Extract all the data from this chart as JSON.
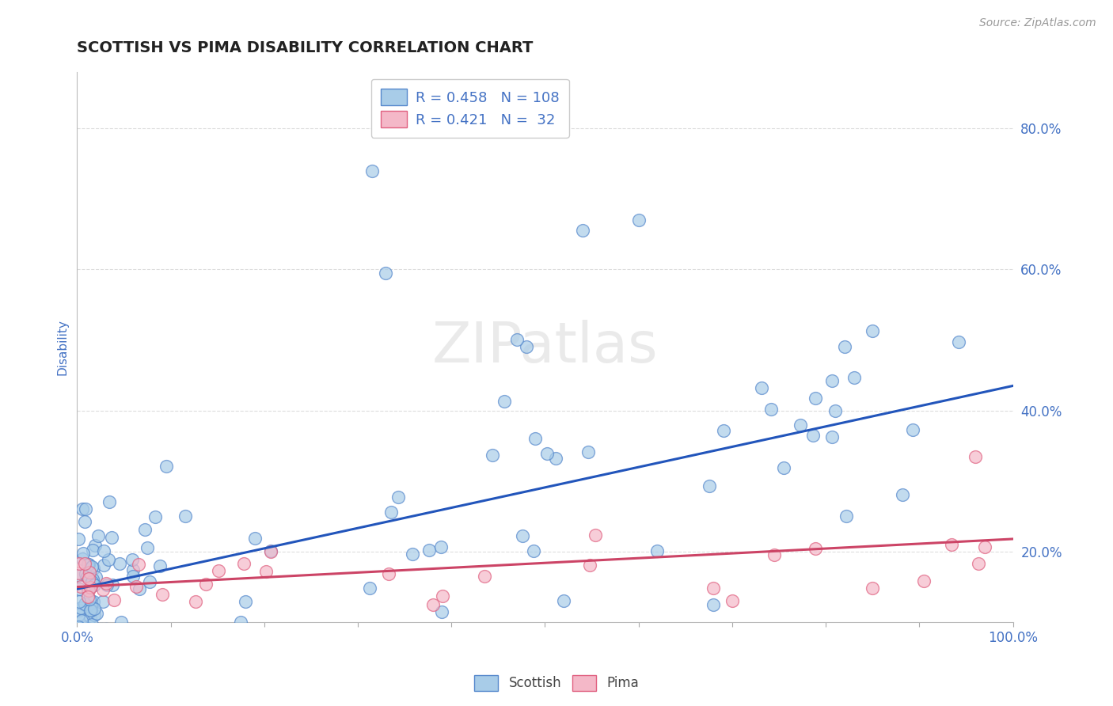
{
  "title": "SCOTTISH VS PIMA DISABILITY CORRELATION CHART",
  "source": "Source: ZipAtlas.com",
  "ylabel": "Disability",
  "xlim": [
    0.0,
    1.0
  ],
  "ylim": [
    0.1,
    0.88
  ],
  "scottish_color": "#A8CCE8",
  "scottish_edge_color": "#5588CC",
  "pima_color": "#F4B8C8",
  "pima_edge_color": "#E06080",
  "scottish_line_color": "#2255BB",
  "pima_line_color": "#CC4466",
  "scottish_R": 0.458,
  "scottish_N": 108,
  "pima_R": 0.421,
  "pima_N": 32,
  "scottish_intercept": 0.147,
  "scottish_slope": 0.288,
  "pima_intercept": 0.15,
  "pima_slope": 0.068,
  "watermark": "ZIPatlas",
  "background_color": "#FFFFFF",
  "grid_color": "#DDDDDD",
  "title_color": "#222222",
  "legend_label_color": "#4472C4",
  "tick_label_color": "#4472C4"
}
